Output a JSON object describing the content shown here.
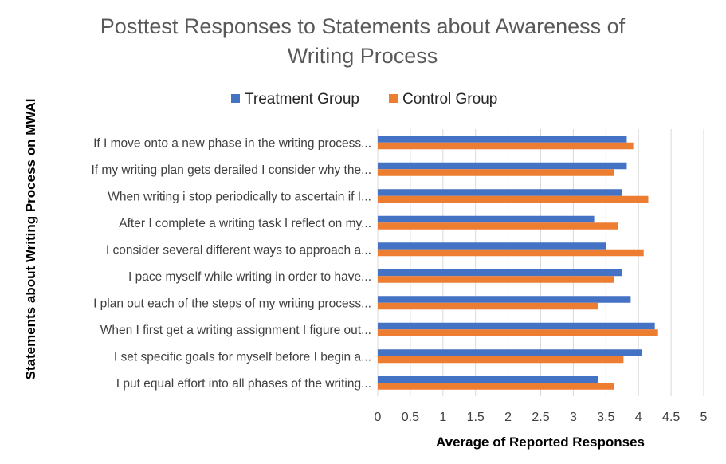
{
  "chart_data": {
    "type": "bar",
    "orientation": "horizontal",
    "title_lines": [
      "Posttest Responses to Statements about Awareness of",
      "Writing Process"
    ],
    "xlabel": "Average of Reported Responses",
    "ylabel": "Statements about Writing Process on MWAI",
    "xlim": [
      0,
      5
    ],
    "xticks": [
      "0",
      "0.5",
      "1",
      "1.5",
      "2",
      "2.5",
      "3",
      "3.5",
      "4",
      "4.5",
      "5"
    ],
    "grid": "vertical",
    "legend_position": "top",
    "categories": [
      "If I move onto a new phase in the writing process...",
      "If my writing plan gets derailed I consider why the...",
      "When writing i stop periodically to ascertain if I...",
      "After I complete a writing task I reflect on my...",
      "I consider several different ways to approach a...",
      "I pace myself while writing in order to have...",
      "I plan out each of the steps of my writing process...",
      "When I first get a writing assignment I figure out...",
      "I set specific goals for myself before I begin a...",
      "I put equal effort into all phases of the writing..."
    ],
    "series": [
      {
        "name": "Treatment Group",
        "color": "#4472C4",
        "values": [
          3.82,
          3.82,
          3.75,
          3.32,
          3.5,
          3.75,
          3.88,
          4.25,
          4.05,
          3.38
        ]
      },
      {
        "name": "Control Group",
        "color": "#ED7D31",
        "values": [
          3.92,
          3.62,
          4.15,
          3.69,
          4.08,
          3.62,
          3.38,
          4.3,
          3.77,
          3.62
        ]
      }
    ]
  }
}
